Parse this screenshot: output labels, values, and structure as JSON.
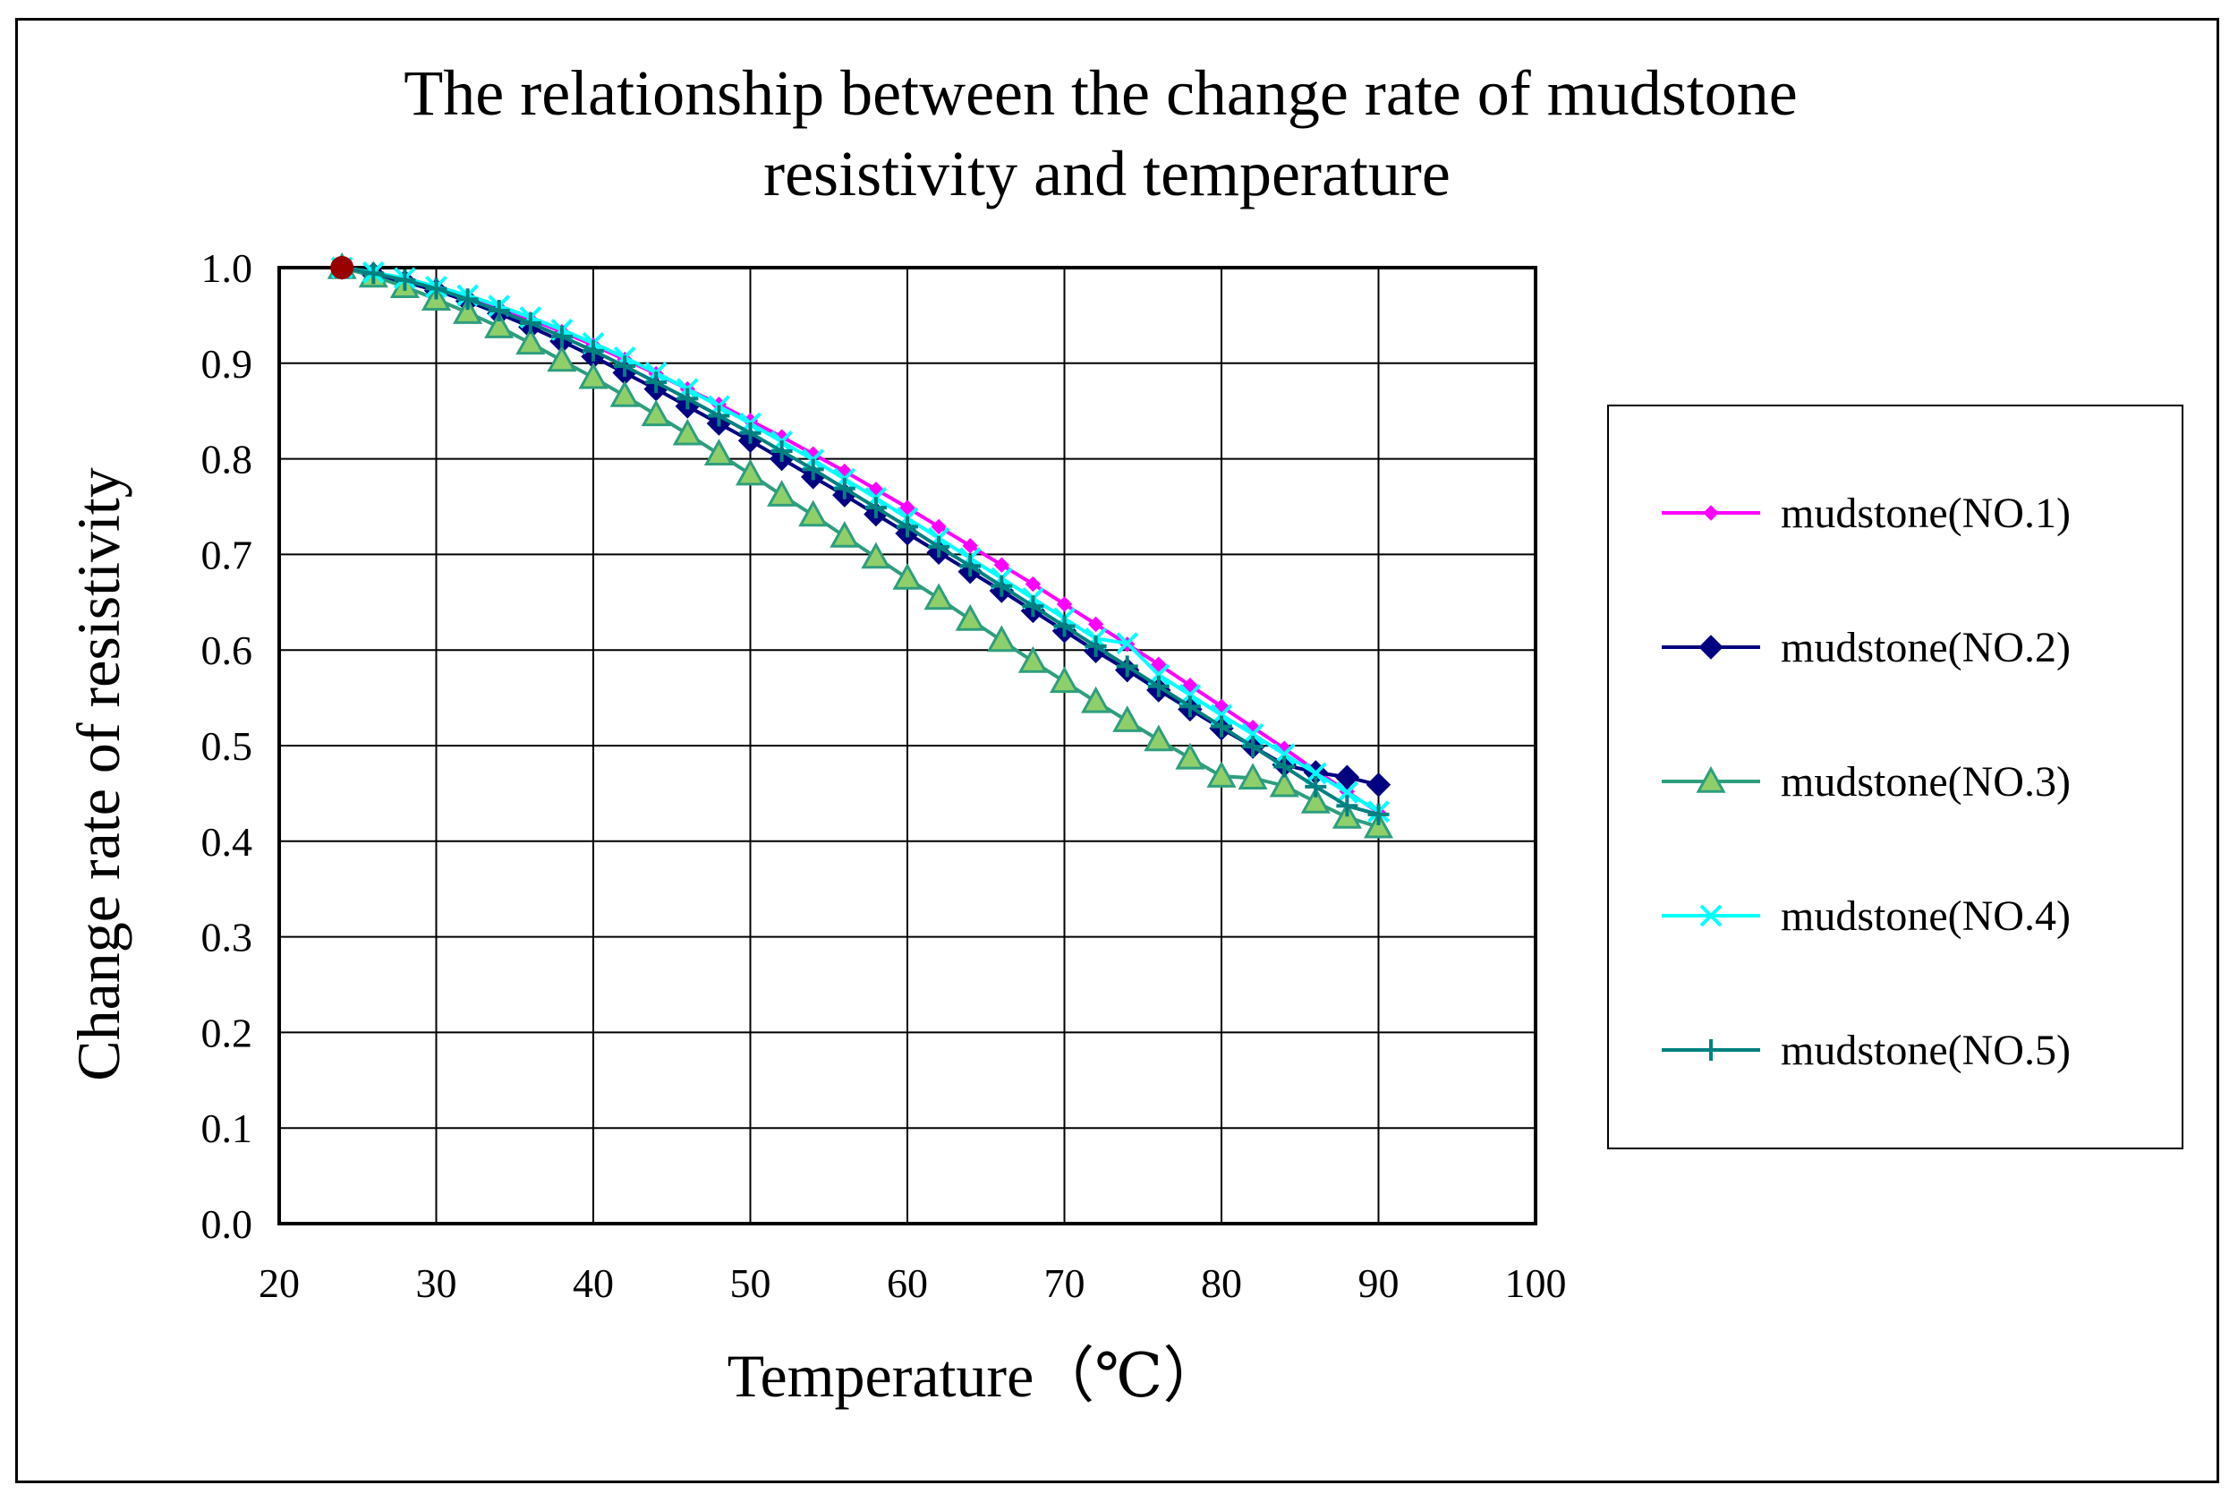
{
  "chart_data": {
    "type": "line",
    "title_lines": [
      "The relationship between the change rate of mudstone",
      "resistivity and temperature"
    ],
    "xlabel": "Temperature（℃）",
    "ylabel": "Change rate of resistivity",
    "xlim": [
      20,
      100
    ],
    "ylim": [
      0.0,
      1.0
    ],
    "xticks": [
      "20",
      "30",
      "40",
      "50",
      "60",
      "70",
      "80",
      "90",
      "100"
    ],
    "yticks": [
      "0.0",
      "0.1",
      "0.2",
      "0.3",
      "0.4",
      "0.5",
      "0.6",
      "0.7",
      "0.8",
      "0.9",
      "1.0"
    ],
    "grid": true,
    "legend_position": "right",
    "x": [
      24,
      26,
      28,
      30,
      32,
      34,
      36,
      38,
      40,
      42,
      44,
      46,
      48,
      50,
      52,
      54,
      56,
      58,
      60,
      62,
      64,
      66,
      68,
      70,
      72,
      74,
      76,
      78,
      80,
      82,
      84,
      86,
      88,
      90
    ],
    "series": [
      {
        "name": "mudstone(NO.1)",
        "color": "#ff00ff",
        "marker": "diamond-small",
        "values": [
          1.0,
          0.995,
          0.988,
          0.979,
          0.969,
          0.958,
          0.946,
          0.933,
          0.919,
          0.904,
          0.889,
          0.873,
          0.857,
          0.84,
          0.823,
          0.805,
          0.787,
          0.768,
          0.749,
          0.729,
          0.709,
          0.689,
          0.669,
          0.648,
          0.627,
          0.606,
          0.585,
          0.563,
          0.541,
          0.519,
          0.497,
          0.474,
          0.452,
          0.43
        ]
      },
      {
        "name": "mudstone(NO.2)",
        "color": "#000080",
        "marker": "diamond",
        "values": [
          1.0,
          0.993,
          0.985,
          0.976,
          0.965,
          0.952,
          0.938,
          0.923,
          0.907,
          0.89,
          0.873,
          0.855,
          0.837,
          0.819,
          0.8,
          0.781,
          0.762,
          0.742,
          0.722,
          0.702,
          0.682,
          0.662,
          0.641,
          0.62,
          0.599,
          0.579,
          0.558,
          0.538,
          0.518,
          0.499,
          0.48,
          0.472,
          0.467,
          0.459
        ]
      },
      {
        "name": "mudstone(NO.3)",
        "color": "#2e9e7e",
        "marker": "triangle",
        "values": [
          1.0,
          0.991,
          0.98,
          0.967,
          0.953,
          0.938,
          0.921,
          0.903,
          0.885,
          0.866,
          0.846,
          0.826,
          0.805,
          0.784,
          0.762,
          0.741,
          0.719,
          0.697,
          0.675,
          0.654,
          0.632,
          0.61,
          0.588,
          0.567,
          0.546,
          0.526,
          0.506,
          0.487,
          0.468,
          0.466,
          0.458,
          0.441,
          0.425,
          0.415
        ]
      },
      {
        "name": "mudstone(NO.4)",
        "color": "#00ffff",
        "marker": "x",
        "values": [
          1.0,
          0.995,
          0.989,
          0.98,
          0.971,
          0.96,
          0.948,
          0.935,
          0.921,
          0.906,
          0.89,
          0.873,
          0.855,
          0.837,
          0.818,
          0.799,
          0.779,
          0.759,
          0.738,
          0.717,
          0.696,
          0.675,
          0.654,
          0.633,
          0.612,
          0.607,
          0.574,
          0.553,
          0.532,
          0.512,
          0.491,
          0.471,
          0.451,
          0.431
        ]
      },
      {
        "name": "mudstone(NO.5)",
        "color": "#008080",
        "marker": "plus",
        "values": [
          1.0,
          0.994,
          0.987,
          0.978,
          0.967,
          0.955,
          0.942,
          0.928,
          0.913,
          0.897,
          0.88,
          0.863,
          0.845,
          0.827,
          0.808,
          0.789,
          0.769,
          0.749,
          0.729,
          0.708,
          0.688,
          0.667,
          0.646,
          0.625,
          0.604,
          0.583,
          0.562,
          0.541,
          0.52,
          0.499,
          0.478,
          0.457,
          0.437,
          0.428
        ]
      }
    ]
  }
}
